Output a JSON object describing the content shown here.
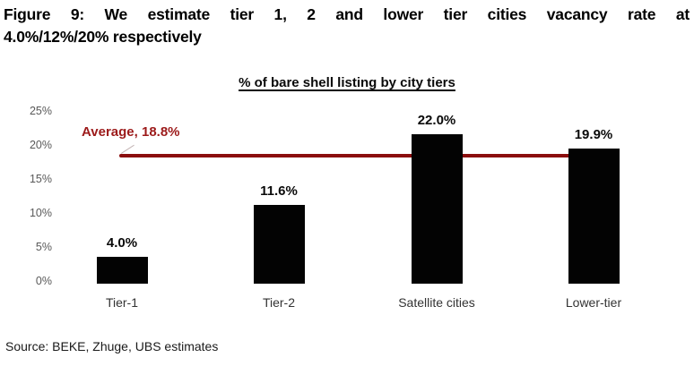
{
  "figure": {
    "title_line1": "Figure 9: We estimate tier 1, 2 and lower tier cities vacancy rate at",
    "title_line2": "4.0%/12%/20% respectively",
    "source": "Source: BEKE, Zhuge, UBS estimates"
  },
  "chart_data": {
    "type": "bar",
    "title": "% of bare shell listing by city tiers",
    "categories": [
      "Tier-1",
      "Tier-2",
      "Satellite cities",
      "Lower-tier"
    ],
    "values": [
      4.0,
      11.6,
      22.0,
      19.9
    ],
    "value_labels": [
      "4.0%",
      "11.6%",
      "22.0%",
      "19.9%"
    ],
    "average": {
      "value": 18.8,
      "label": "Average, 18.8%"
    },
    "xlabel": "",
    "ylabel": "",
    "ylim": [
      0,
      25
    ],
    "ytick_values": [
      0,
      5,
      10,
      15,
      20,
      25
    ],
    "ytick_labels": [
      "0%",
      "5%",
      "10%",
      "15%",
      "20%",
      "25%"
    ],
    "grid": false,
    "legend": "none",
    "colors": {
      "bar": "#030303",
      "average_line": "#8B0E0E",
      "average_text": "#9C1A1A",
      "tick_text": "#595959",
      "title_text": "#000000"
    }
  }
}
